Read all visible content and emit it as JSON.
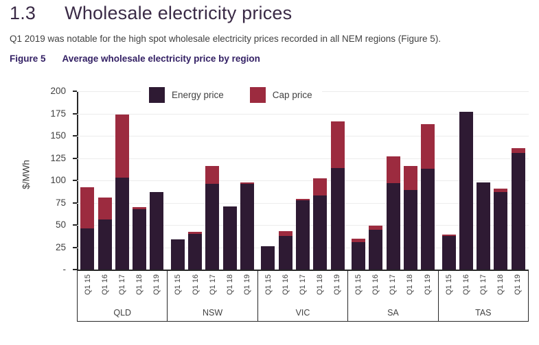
{
  "header": {
    "section_number": "1.3",
    "section_title": "Wholesale electricity prices",
    "intro": "Q1 2019 was notable for the high spot wholesale electricity prices recorded in all NEM regions (Figure 5).",
    "figure_label": "Figure 5",
    "figure_title": "Average wholesale electricity price by region"
  },
  "colors": {
    "energy": "#2E1A33",
    "cap": "#9C2B3F",
    "heading": "#3A2A46",
    "figure_caption": "#332064",
    "body_text": "#404040",
    "axis_text": "#404040",
    "axis_line": "#262626",
    "gridline": "#ECECEC"
  },
  "chart_data": {
    "type": "bar",
    "stacked": true,
    "title": "Average wholesale electricity price by region",
    "ylabel": "$/MWh",
    "ylim": [
      0,
      200
    ],
    "ytick_step": 25,
    "zero_tick_label": "-",
    "grid": true,
    "legend_position": "top",
    "legend": [
      {
        "label": "Energy price",
        "color_key": "energy"
      },
      {
        "label": "Cap price",
        "color_key": "cap"
      }
    ],
    "quarters": [
      "Q1 15",
      "Q1 16",
      "Q1 17",
      "Q1 18",
      "Q1 19"
    ],
    "series_names": [
      "Energy price",
      "Cap price"
    ],
    "groups": [
      {
        "region": "QLD",
        "energy": [
          46,
          56,
          103,
          68,
          87
        ],
        "cap": [
          46,
          25,
          71,
          2,
          0
        ]
      },
      {
        "region": "NSW",
        "energy": [
          34,
          40,
          96,
          71,
          96
        ],
        "cap": [
          0,
          2,
          20,
          0,
          2
        ]
      },
      {
        "region": "VIC",
        "energy": [
          26,
          38,
          78,
          83,
          114
        ],
        "cap": [
          0,
          5,
          1,
          19,
          52
        ]
      },
      {
        "region": "SA",
        "energy": [
          31,
          45,
          97,
          89,
          113
        ],
        "cap": [
          4,
          4,
          30,
          27,
          50
        ]
      },
      {
        "region": "TAS",
        "energy": [
          38,
          177,
          98,
          87,
          131
        ],
        "cap": [
          1,
          0,
          0,
          4,
          5
        ]
      }
    ]
  }
}
